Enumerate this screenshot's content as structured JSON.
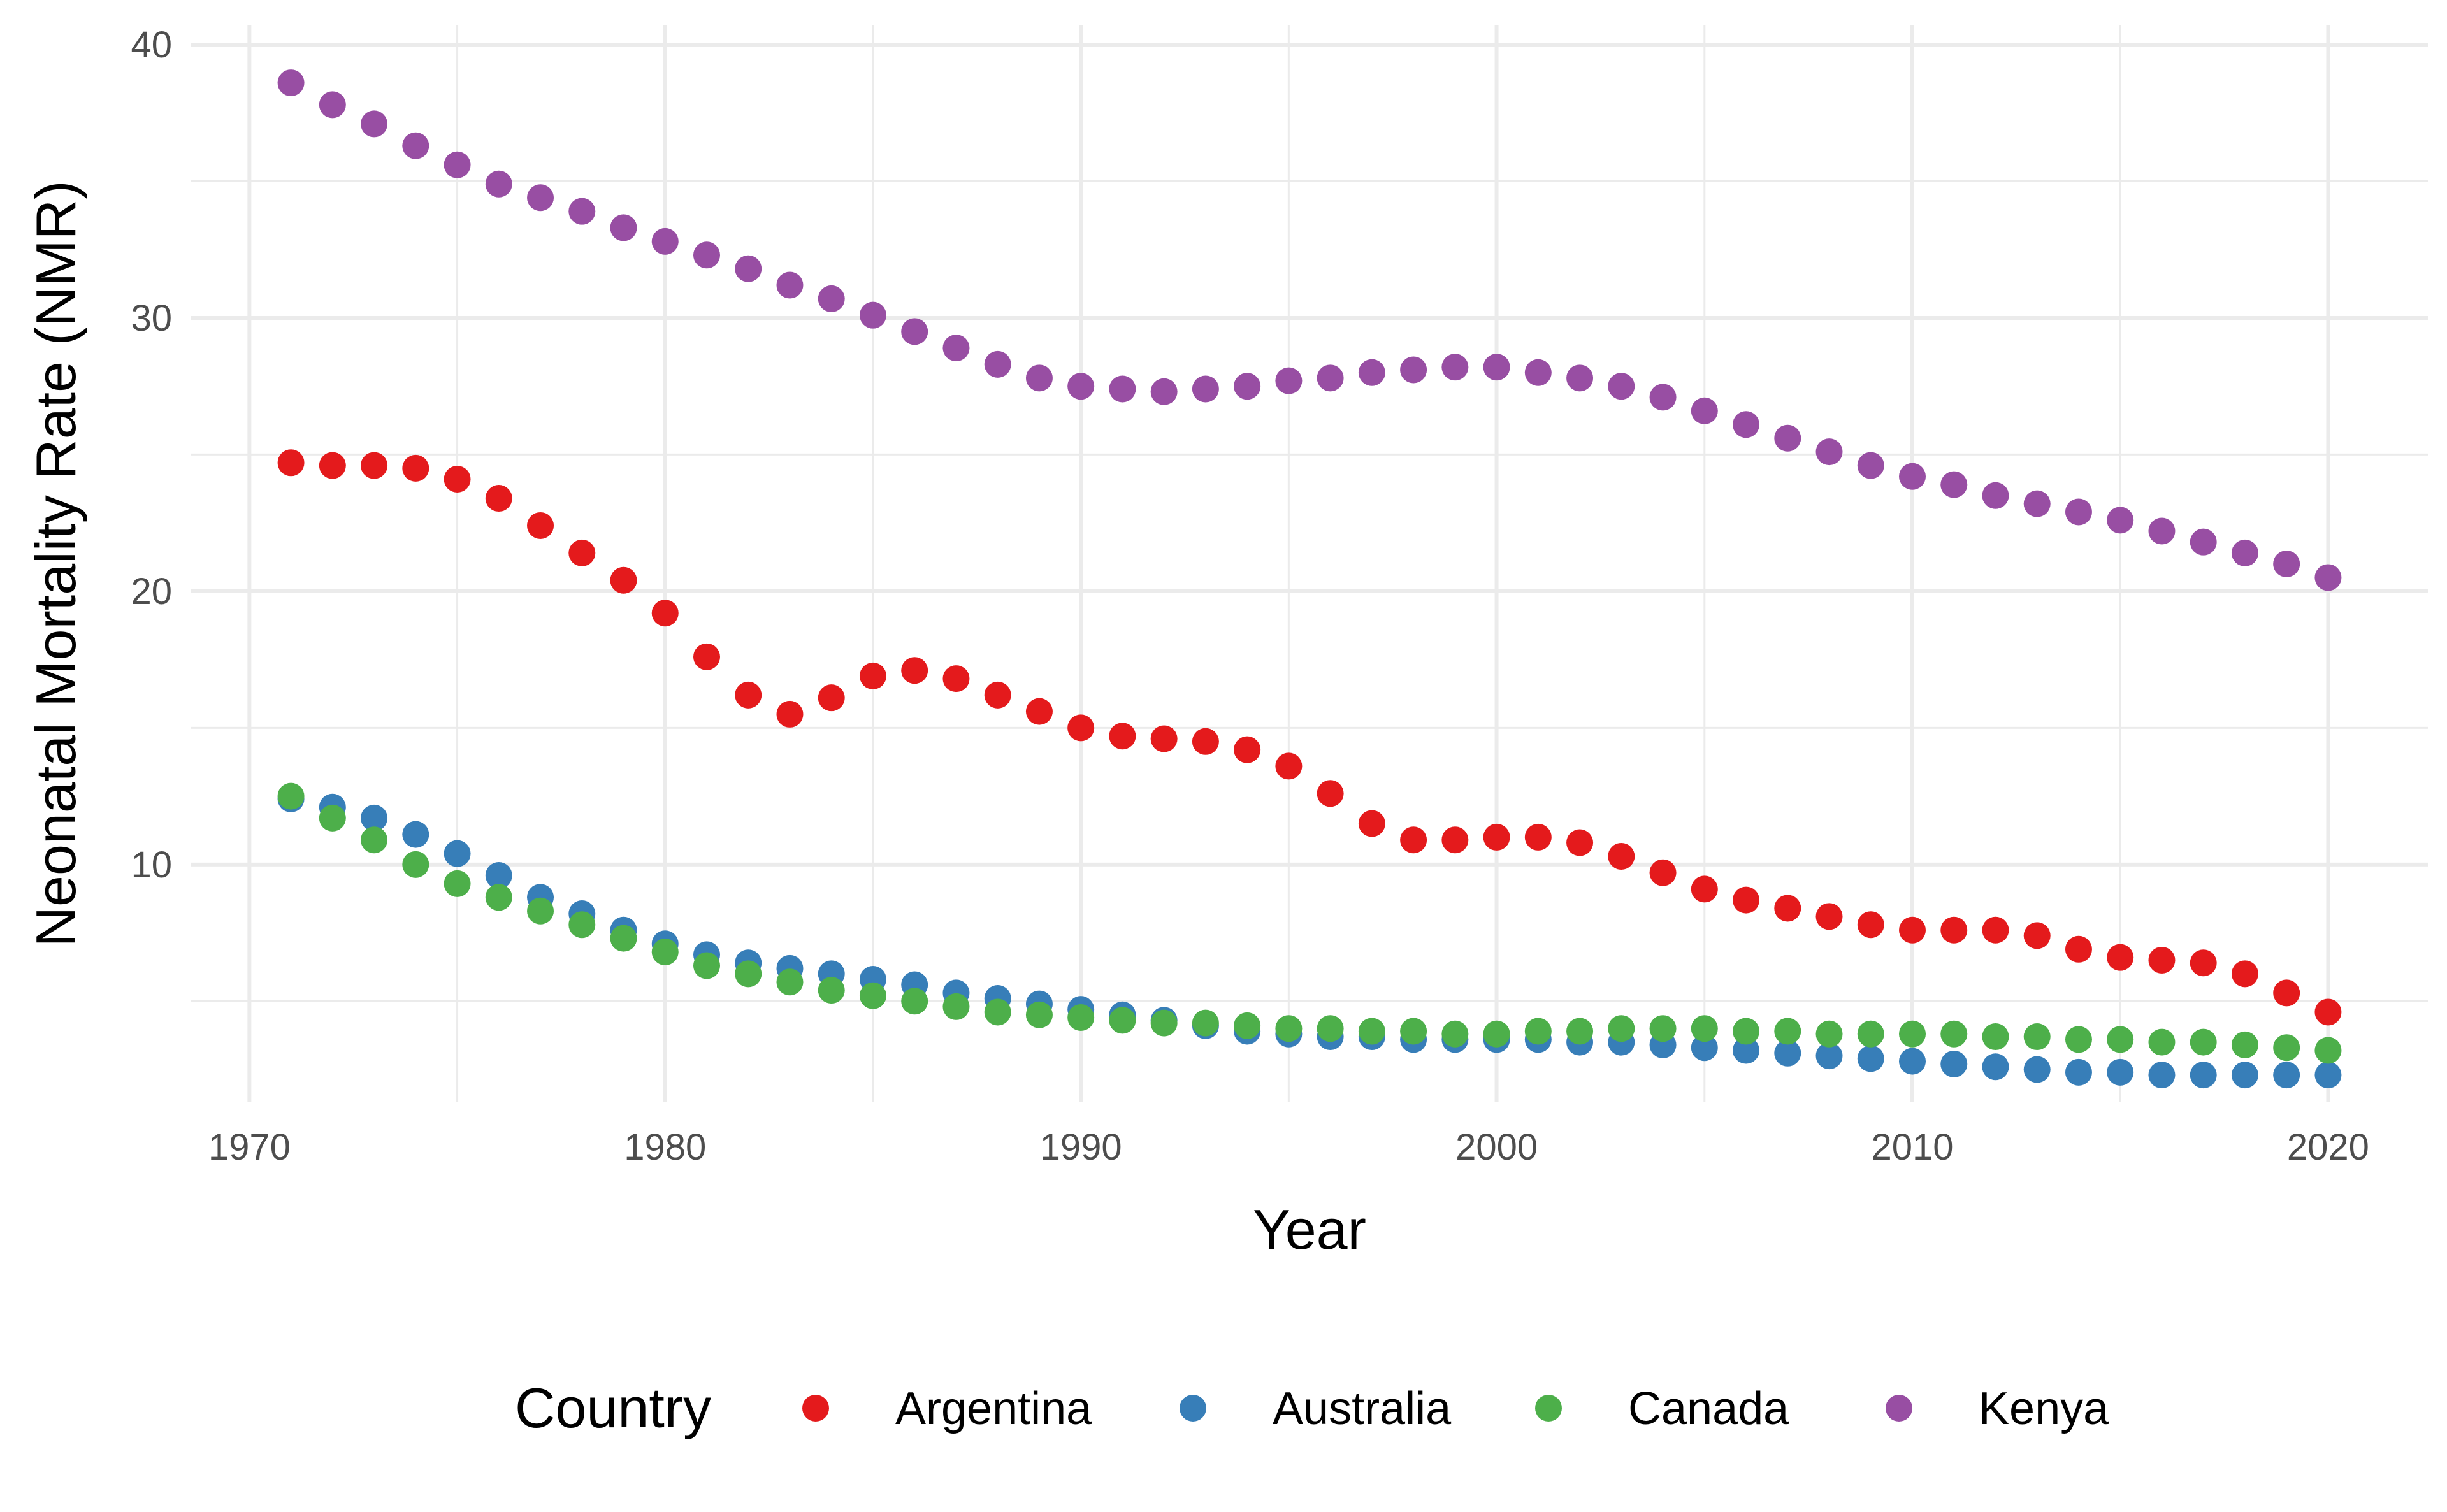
{
  "chart_data": {
    "type": "scatter",
    "xlabel": "Year",
    "ylabel": "Neonatal Mortality Rate (NMR)",
    "xlim": [
      1968.6,
      2022.4
    ],
    "ylim": [
      1.3,
      40.7
    ],
    "x_ticks": [
      1970,
      1980,
      1990,
      2000,
      2010,
      2020
    ],
    "y_ticks": [
      10,
      20,
      30,
      40
    ],
    "x_tick_labels": [
      "1970",
      "1980",
      "1990",
      "2000",
      "2010",
      "2020"
    ],
    "y_tick_labels": [
      "10",
      "20",
      "30",
      "40"
    ],
    "grid": true,
    "legend": {
      "title": "Country",
      "position": "bottom"
    },
    "x": [
      1971,
      1972,
      1973,
      1974,
      1975,
      1976,
      1977,
      1978,
      1979,
      1980,
      1981,
      1982,
      1983,
      1984,
      1985,
      1986,
      1987,
      1988,
      1989,
      1990,
      1991,
      1992,
      1993,
      1994,
      1995,
      1996,
      1997,
      1998,
      1999,
      2000,
      2001,
      2002,
      2003,
      2004,
      2005,
      2006,
      2007,
      2008,
      2009,
      2010,
      2011,
      2012,
      2013,
      2014,
      2015,
      2016,
      2017,
      2018,
      2019,
      2020
    ],
    "series": [
      {
        "name": "Argentina",
        "color": "#E41A1C",
        "values": [
          24.7,
          24.6,
          24.6,
          24.5,
          24.1,
          23.4,
          22.4,
          21.4,
          20.4,
          19.2,
          17.6,
          16.2,
          15.5,
          16.1,
          16.9,
          17.1,
          16.8,
          16.2,
          15.6,
          15.0,
          14.7,
          14.6,
          14.5,
          14.2,
          13.6,
          12.6,
          11.5,
          10.9,
          10.9,
          11.0,
          11.0,
          10.8,
          10.3,
          9.7,
          9.1,
          8.7,
          8.4,
          8.1,
          7.8,
          7.6,
          7.6,
          7.6,
          7.4,
          6.9,
          6.6,
          6.5,
          6.4,
          6.0,
          5.3,
          4.6
        ]
      },
      {
        "name": "Australia",
        "color": "#377EB8",
        "values": [
          12.4,
          12.1,
          11.7,
          11.1,
          10.4,
          9.6,
          8.8,
          8.2,
          7.6,
          7.1,
          6.7,
          6.4,
          6.2,
          6.0,
          5.8,
          5.6,
          5.3,
          5.1,
          4.9,
          4.7,
          4.5,
          4.3,
          4.1,
          3.9,
          3.8,
          3.7,
          3.7,
          3.6,
          3.6,
          3.6,
          3.6,
          3.5,
          3.5,
          3.4,
          3.3,
          3.2,
          3.1,
          3.0,
          2.9,
          2.8,
          2.7,
          2.6,
          2.5,
          2.4,
          2.4,
          2.3,
          2.3,
          2.3,
          2.3,
          2.3
        ]
      },
      {
        "name": "Canada",
        "color": "#4DAF4A",
        "values": [
          12.5,
          11.7,
          10.9,
          10.0,
          9.3,
          8.8,
          8.3,
          7.8,
          7.3,
          6.8,
          6.3,
          6.0,
          5.7,
          5.4,
          5.2,
          5.0,
          4.8,
          4.6,
          4.5,
          4.4,
          4.3,
          4.2,
          4.2,
          4.1,
          4.0,
          4.0,
          3.9,
          3.9,
          3.8,
          3.8,
          3.9,
          3.9,
          4.0,
          4.0,
          4.0,
          3.9,
          3.9,
          3.8,
          3.8,
          3.8,
          3.8,
          3.7,
          3.7,
          3.6,
          3.6,
          3.5,
          3.5,
          3.4,
          3.3,
          3.2
        ]
      },
      {
        "name": "Kenya",
        "color": "#984EA3",
        "values": [
          38.6,
          37.8,
          37.1,
          36.3,
          35.6,
          34.9,
          34.4,
          33.9,
          33.3,
          32.8,
          32.3,
          31.8,
          31.2,
          30.7,
          30.1,
          29.5,
          28.9,
          28.3,
          27.8,
          27.5,
          27.4,
          27.3,
          27.4,
          27.5,
          27.7,
          27.8,
          28.0,
          28.1,
          28.2,
          28.2,
          28.0,
          27.8,
          27.5,
          27.1,
          26.6,
          26.1,
          25.6,
          25.1,
          24.6,
          24.2,
          23.9,
          23.5,
          23.2,
          22.9,
          22.6,
          22.2,
          21.8,
          21.4,
          21.0,
          20.5
        ]
      }
    ]
  }
}
